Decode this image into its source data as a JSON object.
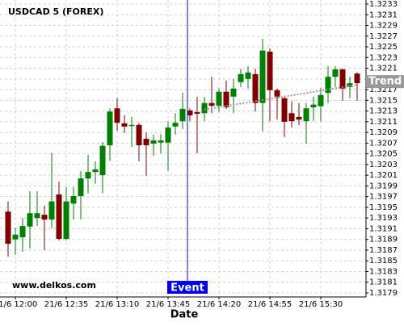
{
  "chart_data": {
    "type": "candlestick",
    "title": "USDCAD 5 (FOREX)",
    "source": "www.delkos.com",
    "x_label": "Date",
    "categories": [
      null,
      "21/6 12:00",
      null,
      null,
      null,
      null,
      null,
      null,
      "21/6 12:35",
      null,
      null,
      null,
      null,
      null,
      null,
      "21/6 13:10",
      null,
      null,
      null,
      null,
      null,
      null,
      "21/6 13:45",
      null,
      null,
      null,
      null,
      null,
      null,
      "21/6 14:20",
      null,
      null,
      null,
      null,
      null,
      null,
      "21/6 14:55",
      null,
      null,
      null,
      null,
      null,
      null,
      "21/6 15:30",
      null,
      null,
      null,
      null,
      null
    ],
    "open": [
      1.31942,
      1.3189,
      1.31894,
      1.31914,
      1.3193,
      1.31936,
      1.31927,
      1.31974,
      1.31891,
      1.31957,
      1.31971,
      1.32004,
      1.32016,
      1.3201,
      1.32066,
      1.32135,
      1.32107,
      1.32102,
      1.32104,
      1.32078,
      1.32069,
      1.32071,
      1.32071,
      1.32101,
      1.32111,
      1.32131,
      1.32128,
      1.32126,
      1.32145,
      1.3214,
      1.32166,
      1.32157,
      1.32184,
      1.3219,
      1.32199,
      1.32145,
      1.32241,
      1.32169,
      1.32154,
      1.32126,
      1.32119,
      1.32111,
      1.32137,
      1.32139,
      1.32164,
      1.32194,
      1.32208,
      1.32175,
      1.322
    ],
    "high": [
      1.31961,
      1.31912,
      1.3193,
      1.3198,
      1.3198,
      1.31953,
      1.32052,
      1.31998,
      1.31988,
      1.31988,
      1.32018,
      1.32048,
      1.32036,
      1.32072,
      1.32135,
      1.32154,
      1.32122,
      1.32119,
      1.32108,
      1.3209,
      1.32086,
      1.32087,
      1.32111,
      1.32126,
      1.32164,
      1.32135,
      1.32157,
      1.32157,
      1.32194,
      1.32172,
      1.32187,
      1.3219,
      1.32209,
      1.32214,
      1.32209,
      1.32265,
      1.32247,
      1.32172,
      1.32157,
      1.32148,
      1.32145,
      1.32145,
      1.32157,
      1.32173,
      1.32214,
      1.32214,
      1.32209,
      1.32194,
      1.32202
    ],
    "low": [
      1.31858,
      1.31861,
      1.31867,
      1.31873,
      1.31915,
      1.3187,
      1.31911,
      1.31888,
      1.31888,
      1.31927,
      1.31927,
      1.31976,
      1.31994,
      1.31976,
      1.32037,
      1.32093,
      1.32089,
      1.32063,
      1.32036,
      1.32009,
      1.32046,
      1.32051,
      1.32018,
      1.32086,
      1.32096,
      1.32111,
      1.32051,
      1.32111,
      1.32126,
      1.32129,
      1.32134,
      1.32126,
      1.32175,
      1.32172,
      1.32129,
      1.32092,
      1.32111,
      1.32114,
      1.32081,
      1.32099,
      1.32104,
      1.32069,
      1.32111,
      1.32111,
      1.32145,
      1.32175,
      1.32149,
      1.32154,
      1.32149
    ],
    "close": [
      1.31882,
      1.31899,
      1.31915,
      1.31939,
      1.31939,
      1.31927,
      1.31961,
      1.31891,
      1.31961,
      1.31971,
      1.32004,
      1.32016,
      1.32021,
      1.32065,
      1.32129,
      1.32108,
      1.32101,
      1.32104,
      1.32066,
      1.32066,
      1.32075,
      1.32075,
      1.32099,
      1.32108,
      1.32134,
      1.32122,
      1.32125,
      1.32145,
      1.3214,
      1.32166,
      1.32137,
      1.32172,
      1.32199,
      1.32202,
      1.32145,
      1.32243,
      1.32169,
      1.32157,
      1.3211,
      1.32111,
      1.32114,
      1.32135,
      1.32142,
      1.3216,
      1.32194,
      1.32208,
      1.32172,
      1.32182,
      1.32182
    ],
    "up_color": "#008000",
    "down_color": "#800000",
    "ylim": [
      1.31785,
      1.32335
    ],
    "yticks": [
      1.3179,
      1.3181,
      1.3183,
      1.3185,
      1.3187,
      1.3189,
      1.3191,
      1.3193,
      1.3195,
      1.3197,
      1.3199,
      1.3201,
      1.3203,
      1.3205,
      1.3207,
      1.3209,
      1.3211,
      1.3213,
      1.3215,
      1.3217,
      1.3219,
      1.3221,
      1.3223,
      1.3225,
      1.3227,
      1.3229,
      1.3231,
      1.3233
    ],
    "grid": true,
    "event": {
      "label": "Event",
      "index": 25,
      "color": "#0000ee"
    },
    "trend": {
      "label": "Trend",
      "start_index": 27,
      "start_value": 1.32133,
      "end_index": 48,
      "end_value": 1.32179,
      "color": "#999999"
    }
  }
}
